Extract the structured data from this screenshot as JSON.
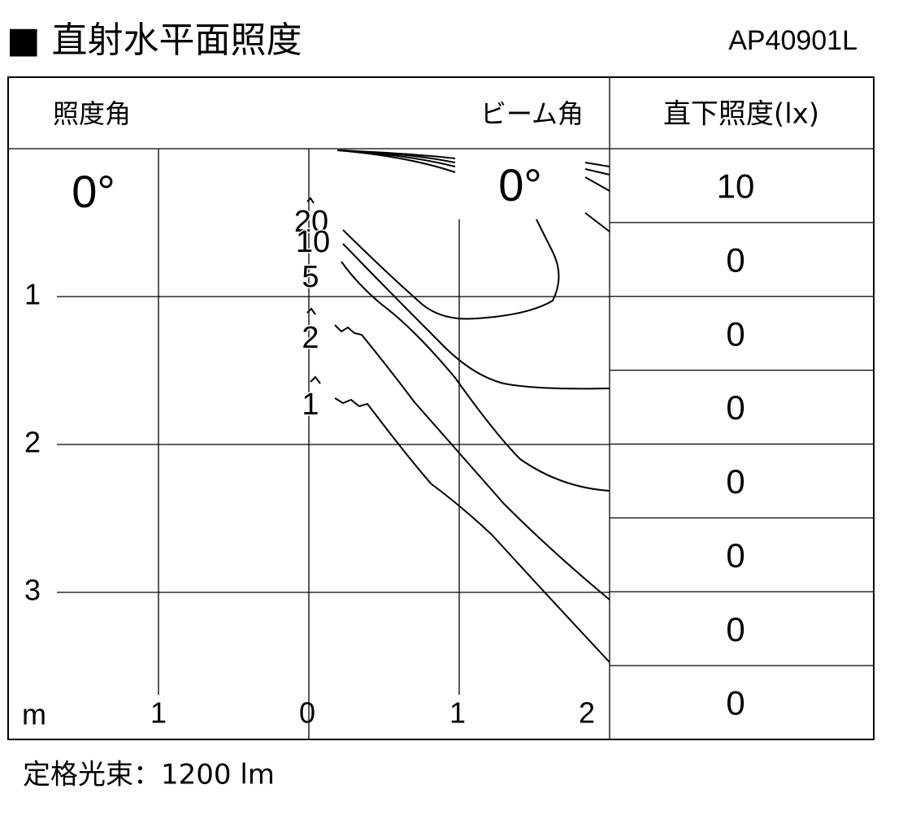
{
  "header": {
    "title": "■ 直射水平面照度",
    "model": "AP40901L"
  },
  "table": {
    "left_label": "照度角",
    "beam_label": "ビーム角",
    "column_title": "直下照度(lx)",
    "illuminance_angle": "0°",
    "beam_angle": "0°",
    "values": [
      10,
      0,
      0,
      0,
      0,
      0,
      0,
      0
    ]
  },
  "axes": {
    "unit": "m",
    "y_labels": [
      1,
      2,
      3
    ],
    "x_labels": [
      1,
      0,
      1,
      2
    ]
  },
  "contour_labels": [
    20,
    10,
    5,
    2,
    1
  ],
  "footer": "定格光束：1200 lm"
}
